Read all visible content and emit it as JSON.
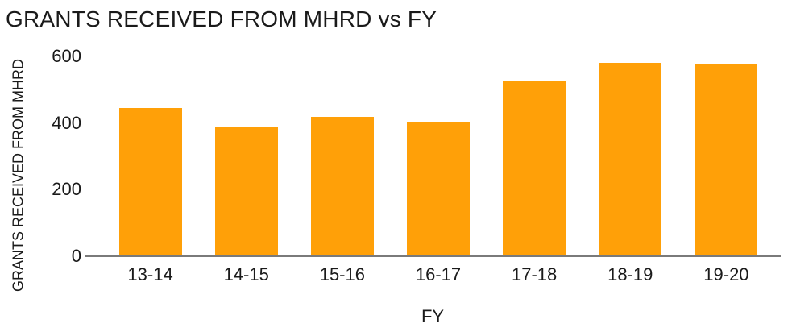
{
  "chart_data": {
    "type": "bar",
    "title": "GRANTS RECEIVED FROM MHRD vs FY",
    "xlabel": "FY",
    "ylabel": "GRANTS RECEIVED FROM MHRD",
    "categories": [
      "13-14",
      "14-15",
      "15-16",
      "16-17",
      "17-18",
      "18-19",
      "19-20"
    ],
    "values": [
      445,
      388,
      418,
      405,
      528,
      580,
      575
    ],
    "ylim": [
      0,
      600
    ],
    "yticks": [
      0,
      200,
      400,
      600
    ],
    "grid": false,
    "legend_position": "none",
    "colors": {
      "bar": "#FFA008",
      "axis_line": "#7A7A7A",
      "text": "#1A1A1A",
      "background": "#FFFFFF"
    }
  }
}
